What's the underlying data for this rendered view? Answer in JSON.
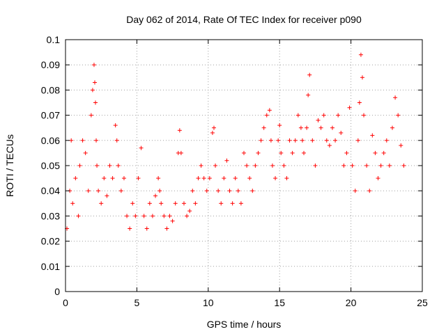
{
  "chart_data": {
    "type": "scatter",
    "title": "Day 062 of 2014, Rate Of TEC Index for receiver p090",
    "xlabel": "GPS time / hours",
    "ylabel": "ROTI / TECUs",
    "xlim": [
      0,
      25
    ],
    "ylim": [
      0,
      0.1
    ],
    "xticks": [
      "0",
      "5",
      "10",
      "15",
      "20",
      "25"
    ],
    "yticks": [
      "0",
      "0.01",
      "0.02",
      "0.03",
      "0.04",
      "0.05",
      "0.06",
      "0.07",
      "0.08",
      "0.09",
      "0.1"
    ],
    "grid": true,
    "marker": "+",
    "marker_color": "#ff0000",
    "series": [
      {
        "x": [
          0.1,
          0.3,
          0.4,
          0.5,
          0.7,
          0.9,
          1.0,
          1.2,
          1.4,
          1.6,
          1.8,
          1.9,
          2.0,
          2.05,
          2.1,
          2.15,
          2.2,
          2.3,
          2.5,
          2.7,
          2.9,
          3.1,
          3.3,
          3.5,
          3.6,
          3.7,
          3.9,
          4.1,
          4.3,
          4.5,
          4.7,
          4.9,
          5.1,
          5.3,
          5.5,
          5.7,
          5.9,
          6.1,
          6.3,
          6.5,
          6.6,
          6.7,
          6.9,
          7.1,
          7.3,
          7.5,
          7.7,
          7.9,
          8.0,
          8.1,
          8.3,
          8.5,
          8.7,
          8.9,
          9.1,
          9.3,
          9.5,
          9.7,
          9.9,
          10.1,
          10.3,
          10.4,
          10.5,
          10.7,
          10.9,
          11.1,
          11.3,
          11.5,
          11.7,
          11.9,
          12.1,
          12.3,
          12.5,
          12.7,
          12.9,
          13.1,
          13.3,
          13.5,
          13.7,
          13.9,
          14.1,
          14.3,
          14.4,
          14.5,
          14.7,
          14.9,
          15.0,
          15.1,
          15.3,
          15.5,
          15.7,
          15.9,
          16.1,
          16.3,
          16.5,
          16.6,
          16.7,
          16.9,
          17.0,
          17.1,
          17.3,
          17.5,
          17.7,
          17.9,
          18.1,
          18.3,
          18.5,
          18.7,
          18.9,
          19.1,
          19.3,
          19.5,
          19.7,
          19.9,
          20.1,
          20.3,
          20.5,
          20.6,
          20.7,
          20.8,
          20.9,
          21.1,
          21.3,
          21.5,
          21.7,
          21.9,
          22.1,
          22.3,
          22.5,
          22.7,
          22.9,
          23.1,
          23.3,
          23.5,
          23.7
        ],
        "y": [
          0.025,
          0.04,
          0.06,
          0.035,
          0.045,
          0.03,
          0.05,
          0.06,
          0.055,
          0.04,
          0.07,
          0.08,
          0.09,
          0.083,
          0.075,
          0.06,
          0.05,
          0.04,
          0.035,
          0.045,
          0.038,
          0.05,
          0.045,
          0.066,
          0.06,
          0.05,
          0.04,
          0.045,
          0.03,
          0.025,
          0.035,
          0.03,
          0.045,
          0.057,
          0.03,
          0.025,
          0.035,
          0.03,
          0.038,
          0.045,
          0.04,
          0.035,
          0.03,
          0.025,
          0.03,
          0.028,
          0.035,
          0.055,
          0.064,
          0.055,
          0.035,
          0.03,
          0.032,
          0.04,
          0.035,
          0.045,
          0.05,
          0.045,
          0.04,
          0.045,
          0.063,
          0.065,
          0.05,
          0.04,
          0.035,
          0.045,
          0.052,
          0.04,
          0.035,
          0.045,
          0.04,
          0.035,
          0.055,
          0.05,
          0.045,
          0.04,
          0.05,
          0.055,
          0.06,
          0.065,
          0.07,
          0.072,
          0.06,
          0.05,
          0.045,
          0.06,
          0.066,
          0.055,
          0.05,
          0.045,
          0.06,
          0.055,
          0.06,
          0.07,
          0.065,
          0.06,
          0.055,
          0.065,
          0.078,
          0.086,
          0.06,
          0.05,
          0.068,
          0.065,
          0.07,
          0.06,
          0.058,
          0.065,
          0.06,
          0.07,
          0.063,
          0.05,
          0.055,
          0.073,
          0.05,
          0.04,
          0.06,
          0.075,
          0.094,
          0.085,
          0.07,
          0.05,
          0.04,
          0.062,
          0.055,
          0.045,
          0.05,
          0.055,
          0.06,
          0.05,
          0.065,
          0.077,
          0.07,
          0.058,
          0.05
        ]
      }
    ]
  }
}
